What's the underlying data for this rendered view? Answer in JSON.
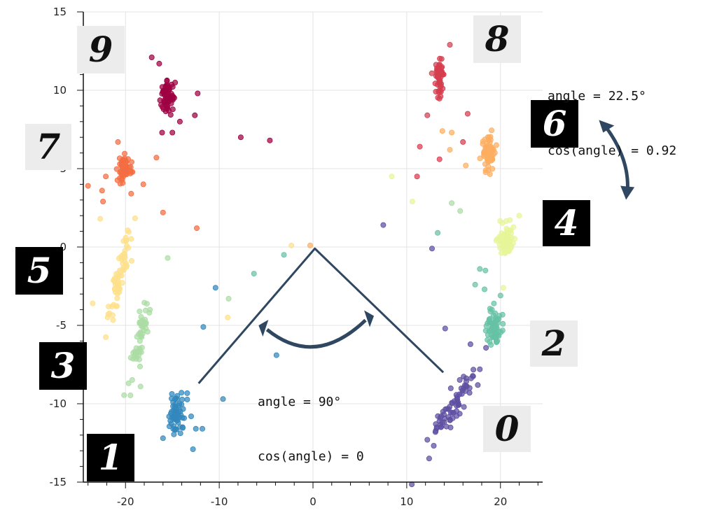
{
  "chart_data": {
    "type": "scatter",
    "title": "",
    "xlabel": "",
    "ylabel": "",
    "xlim": [
      -24.5,
      24.5
    ],
    "ylim": [
      -15,
      15
    ],
    "xticks": [
      -20,
      -10,
      0,
      10,
      20
    ],
    "yticks": [
      -15,
      -10,
      -5,
      0,
      5,
      10,
      15
    ],
    "grid": true,
    "clusters": [
      {
        "label": "0",
        "center": [
          15.2,
          -10.0
        ],
        "color": "#5e4fa2",
        "spread": [
          0.9,
          1.3
        ],
        "n": 70
      },
      {
        "label": "1",
        "center": [
          -14.5,
          -10.6
        ],
        "color": "#3288bd",
        "spread": [
          0.9,
          0.7
        ],
        "n": 60
      },
      {
        "label": "2",
        "center": [
          19.3,
          -5.2
        ],
        "color": "#66c2a5",
        "spread": [
          0.8,
          0.6
        ],
        "n": 70
      },
      {
        "label": "3",
        "center": [
          -18.5,
          -5.8
        ],
        "color": "#abdda4",
        "spread": [
          0.5,
          1.3
        ],
        "n": 55
      },
      {
        "label": "4",
        "center": [
          20.5,
          0.4
        ],
        "color": "#e6f598",
        "spread": [
          0.9,
          0.5
        ],
        "n": 65
      },
      {
        "label": "5",
        "center": [
          -20.5,
          -1.5
        ],
        "color": "#fee08b",
        "spread": [
          0.5,
          1.7
        ],
        "n": 70
      },
      {
        "label": "6",
        "center": [
          18.7,
          5.9
        ],
        "color": "#fdae61",
        "spread": [
          0.7,
          0.6
        ],
        "n": 65
      },
      {
        "label": "7",
        "center": [
          -20.1,
          5.1
        ],
        "color": "#f46d43",
        "spread": [
          0.6,
          0.5
        ],
        "n": 55
      },
      {
        "label": "8",
        "center": [
          13.5,
          10.8
        ],
        "color": "#d53e4f",
        "spread": [
          0.4,
          0.6
        ],
        "n": 60
      },
      {
        "label": "9",
        "center": [
          -15.5,
          9.7
        ],
        "color": "#9e0142",
        "spread": [
          0.6,
          0.5
        ],
        "n": 65
      }
    ],
    "outliers": [
      {
        "x": -17.2,
        "y": 12.1,
        "color": "#9e0142"
      },
      {
        "x": -16.4,
        "y": 11.7,
        "color": "#9e0142"
      },
      {
        "x": -12.3,
        "y": 9.8,
        "color": "#9e0142"
      },
      {
        "x": -12.6,
        "y": 8.4,
        "color": "#9e0142"
      },
      {
        "x": -14.2,
        "y": 8.0,
        "color": "#9e0142"
      },
      {
        "x": -16.1,
        "y": 7.3,
        "color": "#9e0142"
      },
      {
        "x": -15.0,
        "y": 7.3,
        "color": "#9e0142"
      },
      {
        "x": -7.7,
        "y": 7.0,
        "color": "#9e0142"
      },
      {
        "x": -4.6,
        "y": 6.8,
        "color": "#9e0142"
      },
      {
        "x": -24.0,
        "y": 3.9,
        "color": "#f46d43"
      },
      {
        "x": -22.5,
        "y": 3.6,
        "color": "#f46d43"
      },
      {
        "x": -22.1,
        "y": 4.5,
        "color": "#f46d43"
      },
      {
        "x": -19.4,
        "y": 3.4,
        "color": "#f46d43"
      },
      {
        "x": -18.1,
        "y": 4.0,
        "color": "#f46d43"
      },
      {
        "x": -16.7,
        "y": 5.7,
        "color": "#f46d43"
      },
      {
        "x": -16.0,
        "y": 2.2,
        "color": "#f46d43"
      },
      {
        "x": -12.4,
        "y": 1.2,
        "color": "#f46d43"
      },
      {
        "x": -22.4,
        "y": 2.9,
        "color": "#f46d43"
      },
      {
        "x": -20.8,
        "y": 6.7,
        "color": "#f46d43"
      },
      {
        "x": -23.5,
        "y": -3.6,
        "color": "#fee08b"
      },
      {
        "x": -21.8,
        "y": -3.8,
        "color": "#fee08b"
      },
      {
        "x": -22.7,
        "y": 1.8,
        "color": "#fee08b"
      },
      {
        "x": -15.5,
        "y": -0.7,
        "color": "#abdda4"
      },
      {
        "x": -18.4,
        "y": -8.9,
        "color": "#abdda4"
      },
      {
        "x": -2.3,
        "y": 0.1,
        "color": "#fee08b"
      },
      {
        "x": -9.0,
        "y": -3.3,
        "color": "#abdda4"
      },
      {
        "x": -6.3,
        "y": -1.7,
        "color": "#66c2a5"
      },
      {
        "x": -3.1,
        "y": -0.5,
        "color": "#66c2a5"
      },
      {
        "x": -10.4,
        "y": -2.6,
        "color": "#3288bd"
      },
      {
        "x": -11.7,
        "y": -5.1,
        "color": "#3288bd"
      },
      {
        "x": -9.6,
        "y": -9.7,
        "color": "#3288bd"
      },
      {
        "x": -16.0,
        "y": -12.2,
        "color": "#3288bd"
      },
      {
        "x": -12.8,
        "y": -12.9,
        "color": "#3288bd"
      },
      {
        "x": -12.5,
        "y": -11.6,
        "color": "#3288bd"
      },
      {
        "x": -11.8,
        "y": -11.6,
        "color": "#3288bd"
      },
      {
        "x": -3.9,
        "y": -6.9,
        "color": "#3288bd"
      },
      {
        "x": -9.1,
        "y": -4.5,
        "color": "#fee08b"
      },
      {
        "x": -0.3,
        "y": 0.1,
        "color": "#fdae61"
      },
      {
        "x": 7.5,
        "y": 1.4,
        "color": "#5e4fa2"
      },
      {
        "x": 8.4,
        "y": 4.5,
        "color": "#e6f598"
      },
      {
        "x": 10.6,
        "y": 2.9,
        "color": "#e6f598"
      },
      {
        "x": 11.4,
        "y": 6.4,
        "color": "#d53e4f"
      },
      {
        "x": 11.1,
        "y": 4.5,
        "color": "#d53e4f"
      },
      {
        "x": 12.2,
        "y": 8.4,
        "color": "#d53e4f"
      },
      {
        "x": 13.8,
        "y": 7.4,
        "color": "#fdae61"
      },
      {
        "x": 14.8,
        "y": 7.3,
        "color": "#fdae61"
      },
      {
        "x": 14.6,
        "y": 6.2,
        "color": "#fdae61"
      },
      {
        "x": 14.6,
        "y": 12.9,
        "color": "#d53e4f"
      },
      {
        "x": 16.0,
        "y": 6.7,
        "color": "#d53e4f"
      },
      {
        "x": 16.5,
        "y": 8.5,
        "color": "#d53e4f"
      },
      {
        "x": 16.3,
        "y": 5.2,
        "color": "#fdae61"
      },
      {
        "x": 13.5,
        "y": 5.6,
        "color": "#d53e4f"
      },
      {
        "x": 14.8,
        "y": 2.8,
        "color": "#abdda4"
      },
      {
        "x": 15.7,
        "y": 2.3,
        "color": "#abdda4"
      },
      {
        "x": 13.3,
        "y": 0.9,
        "color": "#66c2a5"
      },
      {
        "x": 12.7,
        "y": -0.1,
        "color": "#5e4fa2"
      },
      {
        "x": 17.8,
        "y": -1.4,
        "color": "#66c2a5"
      },
      {
        "x": 17.3,
        "y": -2.4,
        "color": "#66c2a5"
      },
      {
        "x": 18.3,
        "y": -2.7,
        "color": "#66c2a5"
      },
      {
        "x": 20.0,
        "y": -3.1,
        "color": "#66c2a5"
      },
      {
        "x": 20.3,
        "y": -2.6,
        "color": "#e6f598"
      },
      {
        "x": 18.4,
        "y": -1.5,
        "color": "#66c2a5"
      },
      {
        "x": 22.0,
        "y": 2.0,
        "color": "#e6f598"
      },
      {
        "x": 23.5,
        "y": -5.9,
        "color": "#66c2a5"
      },
      {
        "x": 14.1,
        "y": -5.2,
        "color": "#5e4fa2"
      },
      {
        "x": 16.8,
        "y": -6.2,
        "color": "#5e4fa2"
      },
      {
        "x": 12.2,
        "y": -12.3,
        "color": "#5e4fa2"
      },
      {
        "x": 13.1,
        "y": -11.3,
        "color": "#5e4fa2"
      },
      {
        "x": 17.8,
        "y": -7.8,
        "color": "#5e4fa2"
      }
    ],
    "annotations": [
      {
        "text": "angle = 90°\ncos(angle) = 0"
      },
      {
        "text": "angle = 22.5°\ncos(angle) = 0.92"
      }
    ],
    "vectors": {
      "origin": [
        0.2,
        -0.1
      ],
      "to_zero": [
        13.9,
        -8.0
      ],
      "to_one": [
        -12.2,
        -8.7
      ],
      "arc_center": [
        0.2,
        -6.5
      ],
      "arc_left": [
        -5.8,
        -5.0
      ],
      "arc_right": [
        6.5,
        -4.4
      ],
      "outer_arc_top": [
        30.8,
        8.1
      ],
      "outer_arc_bottom": [
        33.4,
        3.1
      ]
    }
  },
  "annotations": {
    "angle90": {
      "line1": "angle = 90°",
      "line2": "cos(angle) = 0"
    },
    "angle22": {
      "line1": "angle = 22.5°",
      "line2": "cos(angle) = 0.92"
    }
  },
  "digit_thumbs": [
    {
      "label": "9",
      "style": "light"
    },
    {
      "label": "8",
      "style": "light"
    },
    {
      "label": "7",
      "style": "light"
    },
    {
      "label": "6",
      "style": "dark"
    },
    {
      "label": "4",
      "style": "dark"
    },
    {
      "label": "5",
      "style": "dark"
    },
    {
      "label": "2",
      "style": "light"
    },
    {
      "label": "3",
      "style": "dark"
    },
    {
      "label": "0",
      "style": "light"
    },
    {
      "label": "1",
      "style": "dark"
    }
  ],
  "colors": {
    "arrow": "#2f4761",
    "grid": "#e3e3e3",
    "axis": "#111111"
  }
}
